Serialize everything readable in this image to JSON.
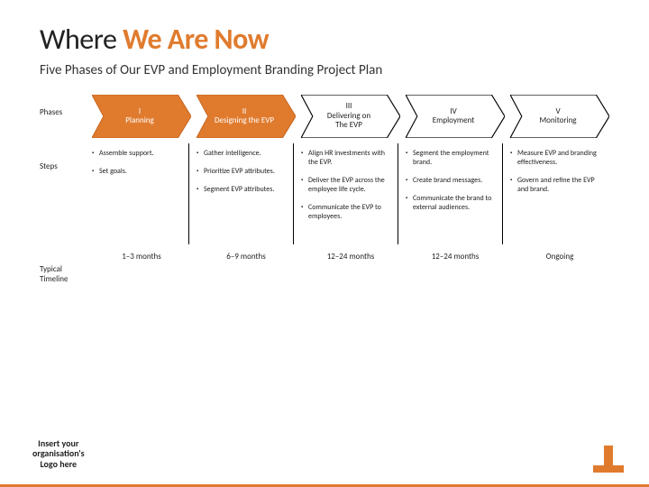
{
  "colors": {
    "accent": "#e07b2e",
    "accent_dark": "#c96a24",
    "ink": "#222222",
    "white": "#ffffff",
    "black": "#000000"
  },
  "title_plain": "Where ",
  "title_accent": "We Are Now",
  "subtitle": "Five Phases of Our EVP and Employment Branding Project Plan",
  "row_labels": {
    "phases": "Phases",
    "steps": "Steps",
    "timeline1": "Typical",
    "timeline2": "Timeline"
  },
  "phases": [
    {
      "num": "I",
      "name": "Planning",
      "fill": "#e07b2e",
      "stroke": "#c96a24",
      "text_color": "#ffffff"
    },
    {
      "num": "II",
      "name": "Designing the EVP",
      "fill": "#e07b2e",
      "stroke": "#c96a24",
      "text_color": "#ffffff"
    },
    {
      "num": "III",
      "name": "Delivering on\nThe EVP",
      "fill": "#ffffff",
      "stroke": "#000000",
      "text_color": "#222222"
    },
    {
      "num": "IV",
      "name": "Employment",
      "fill": "#ffffff",
      "stroke": "#000000",
      "text_color": "#222222"
    },
    {
      "num": "V",
      "name": "Monitoring",
      "fill": "#ffffff",
      "stroke": "#000000",
      "text_color": "#222222"
    }
  ],
  "steps": [
    [
      "Assemble support.",
      "Set goals."
    ],
    [
      "Gather intelligence.",
      "Prioritize EVP attributes.",
      "Segment EVP attributes."
    ],
    [
      "Align HR investments with the EVP.",
      "Deliver the EVP across the employee life cycle.",
      "Communicate the EVP to employees."
    ],
    [
      "Segment the employment brand.",
      "Create brand messages.",
      "Communicate the brand to external audiences."
    ],
    [
      "Measure EVP and branding effectiveness.",
      "Govern and refine the EVP and brand."
    ]
  ],
  "timeline": [
    "1–3 months",
    "6–9 months",
    "12–24 months",
    "12–24 months",
    "Ongoing"
  ],
  "logo_placeholder": "Insert your\norganisation's\nLogo here"
}
